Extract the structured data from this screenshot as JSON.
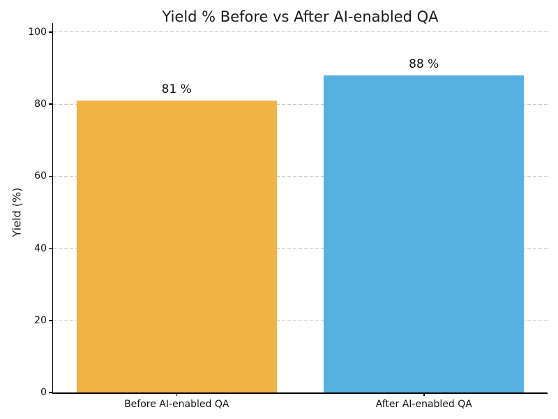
{
  "chart_data": {
    "type": "bar",
    "title": "Yield % Before vs After AI-enabled QA",
    "xlabel": "",
    "ylabel": "Yield (%)",
    "categories": [
      "Before AI-enabled QA",
      "After AI-enabled QA"
    ],
    "values": [
      81,
      88
    ],
    "value_labels": [
      "81 %",
      "88 %"
    ],
    "bar_colors": [
      "#f2b342",
      "#56b1e0"
    ],
    "ylim": [
      0,
      102.5
    ],
    "yticks": [
      0,
      20,
      40,
      60,
      80,
      100
    ],
    "grid": "horizontal-dashed",
    "gridline_color": "#c9c9c9",
    "spines": [
      "left",
      "bottom"
    ],
    "legend": "none",
    "bar_width_fraction": 0.81
  }
}
